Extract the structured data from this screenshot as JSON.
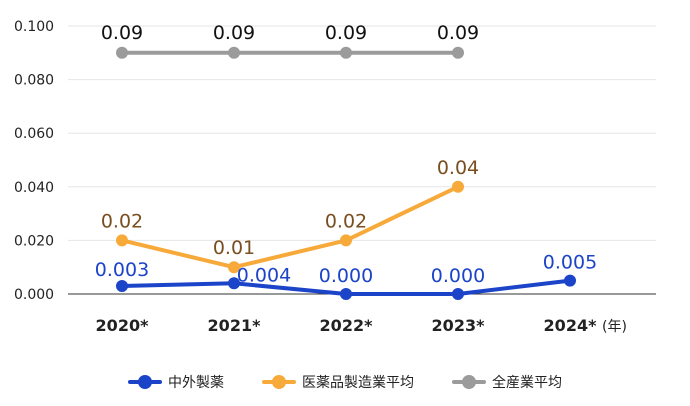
{
  "chart_data": {
    "type": "line",
    "categories": [
      "2020*",
      "2021*",
      "2022*",
      "2023*",
      "2024*"
    ],
    "x_unit": "(年)",
    "ylim": [
      0,
      0.1
    ],
    "y_ticks": [
      "0.000",
      "0.020",
      "0.040",
      "0.060",
      "0.080",
      "0.100"
    ],
    "y_tick_values": [
      0,
      0.02,
      0.04,
      0.06,
      0.08,
      0.1
    ],
    "grid": true,
    "legend_position": "bottom",
    "series": [
      {
        "name": "中外製薬",
        "color": "#1c44c9",
        "label_color": "#1c44c9",
        "values": [
          0.003,
          0.004,
          0.0,
          0.0,
          0.005
        ],
        "labels": [
          "0.003",
          "0.004",
          "0.000",
          "0.000",
          "0.005"
        ]
      },
      {
        "name": "医薬品製造業平均",
        "color": "#f7a93a",
        "label_color": "#7a4e1e",
        "values": [
          0.02,
          0.01,
          0.02,
          0.04,
          null
        ],
        "labels": [
          "0.02",
          "0.01",
          "0.02",
          "0.04",
          null
        ]
      },
      {
        "name": "全産業平均",
        "color": "#9b9b9b",
        "label_color": "#111111",
        "values": [
          0.09,
          0.09,
          0.09,
          0.09,
          null
        ],
        "labels": [
          "0.09",
          "0.09",
          "0.09",
          "0.09",
          null
        ]
      }
    ]
  }
}
